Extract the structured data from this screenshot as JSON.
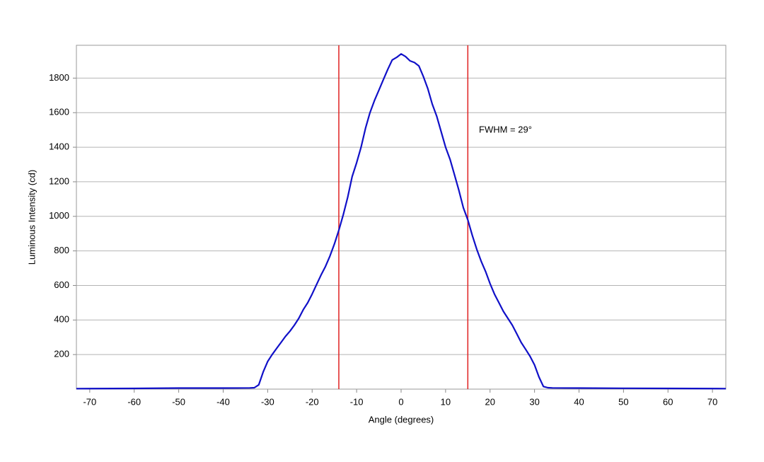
{
  "chart_data": {
    "type": "line",
    "x_label": "Angle (degrees)",
    "y_label": "Luminous Intensity (cd)",
    "annotation": "FWHM = 29°",
    "x": [
      -73,
      -60,
      -50,
      -40,
      -34,
      -33,
      -32,
      -31,
      -30,
      -29,
      -28,
      -27,
      -26,
      -25,
      -24,
      -23,
      -22,
      -21,
      -20,
      -19,
      -18,
      -17,
      -16,
      -15,
      -14,
      -13,
      -12,
      -11,
      -10,
      -9,
      -8,
      -7,
      -6,
      -5,
      -4,
      -3,
      -2,
      -1,
      0,
      1,
      2,
      3,
      4,
      5,
      6,
      7,
      8,
      9,
      10,
      11,
      12,
      13,
      14,
      15,
      16,
      17,
      18,
      19,
      20,
      21,
      22,
      23,
      24,
      25,
      26,
      27,
      28,
      29,
      30,
      31,
      32,
      33,
      34,
      40,
      50,
      60,
      73
    ],
    "series": [
      {
        "color": "#1010c8",
        "values": [
          3,
          4,
          6,
          6,
          7,
          8,
          25,
          100,
          160,
          200,
          235,
          270,
          305,
          335,
          370,
          410,
          460,
          500,
          550,
          605,
          660,
          710,
          770,
          840,
          920,
          1010,
          1110,
          1230,
          1310,
          1400,
          1510,
          1600,
          1670,
          1730,
          1790,
          1850,
          1905,
          1920,
          1940,
          1925,
          1900,
          1890,
          1870,
          1810,
          1740,
          1650,
          1580,
          1490,
          1400,
          1330,
          1240,
          1150,
          1050,
          980,
          890,
          810,
          740,
          680,
          610,
          550,
          500,
          450,
          410,
          370,
          320,
          270,
          230,
          190,
          140,
          70,
          15,
          8,
          7,
          6,
          5,
          4,
          3
        ]
      }
    ],
    "vlines": [
      -14,
      15
    ],
    "vline_color": "#e02020",
    "xlim": [
      -73,
      73
    ],
    "ylim": [
      0,
      1990
    ],
    "xticks": [
      -70,
      -60,
      -50,
      -40,
      -30,
      -20,
      -10,
      0,
      10,
      20,
      30,
      40,
      50,
      60,
      70
    ],
    "yticks": [
      200,
      400,
      600,
      800,
      1000,
      1200,
      1400,
      1600,
      1800
    ],
    "grid": true
  }
}
